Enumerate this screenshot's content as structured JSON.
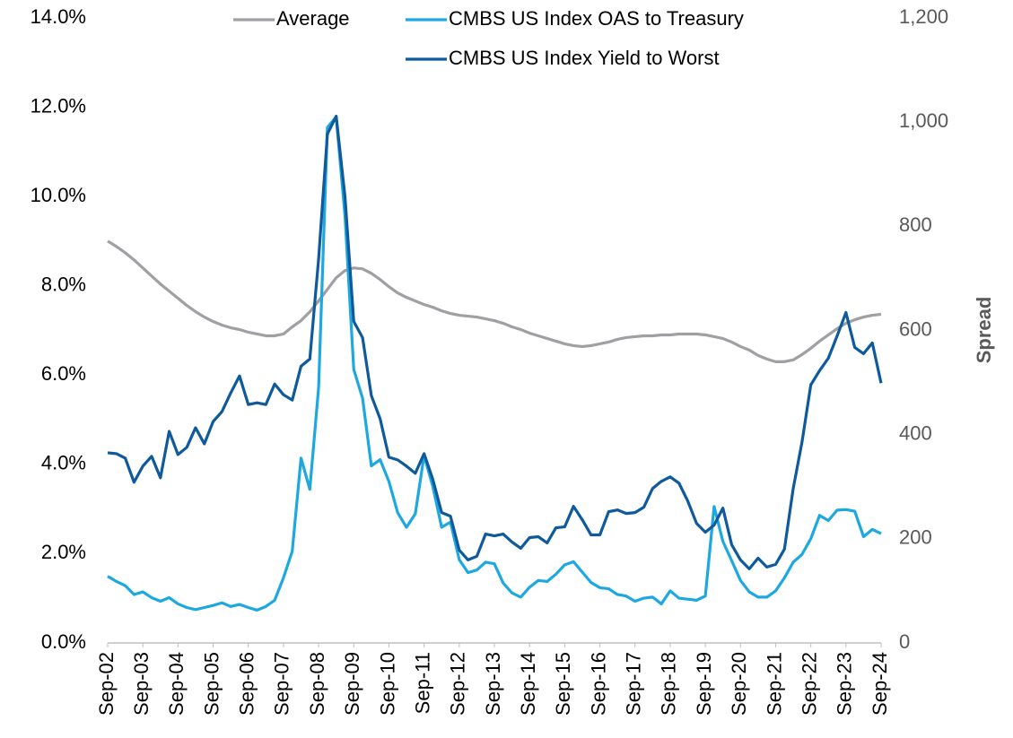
{
  "chart_data": {
    "type": "line",
    "categories": [
      "Sep-02",
      null,
      null,
      null,
      "Sep-03",
      null,
      null,
      null,
      "Sep-04",
      null,
      null,
      null,
      "Sep-05",
      null,
      null,
      null,
      "Sep-06",
      null,
      null,
      null,
      "Sep-07",
      null,
      null,
      null,
      "Sep-08",
      null,
      null,
      null,
      "Sep-09",
      null,
      null,
      null,
      "Sep-10",
      null,
      null,
      null,
      "Sep-11",
      null,
      null,
      null,
      "Sep-12",
      null,
      null,
      null,
      "Sep-13",
      null,
      null,
      null,
      "Sep-14",
      null,
      null,
      null,
      "Sep-15",
      null,
      null,
      null,
      "Sep-16",
      null,
      null,
      null,
      "Sep-17",
      null,
      null,
      null,
      "Sep-18",
      null,
      null,
      null,
      "Sep-19",
      null,
      null,
      null,
      "Sep-20",
      null,
      null,
      null,
      "Sep-21",
      null,
      null,
      null,
      "Sep-22",
      null,
      null,
      null,
      "Sep-23",
      null,
      null,
      null,
      "Sep-24"
    ],
    "series": [
      {
        "name": "Average",
        "color": "#a0a0a4",
        "values": [
          9.0,
          8.88,
          8.74,
          8.58,
          8.4,
          8.22,
          8.04,
          7.88,
          7.72,
          7.56,
          7.42,
          7.3,
          7.2,
          7.12,
          7.06,
          7.02,
          6.96,
          6.92,
          6.88,
          6.88,
          6.92,
          7.08,
          7.22,
          7.42,
          7.66,
          7.92,
          8.18,
          8.34,
          8.4,
          8.38,
          8.28,
          8.14,
          7.98,
          7.84,
          7.74,
          7.66,
          7.58,
          7.52,
          7.44,
          7.38,
          7.34,
          7.32,
          7.3,
          7.26,
          7.22,
          7.16,
          7.08,
          7.02,
          6.94,
          6.88,
          6.82,
          6.76,
          6.7,
          6.66,
          6.64,
          6.66,
          6.7,
          6.74,
          6.8,
          6.84,
          6.86,
          6.88,
          6.88,
          6.9,
          6.9,
          6.92,
          6.92,
          6.92,
          6.9,
          6.86,
          6.82,
          6.74,
          6.64,
          6.56,
          6.44,
          6.36,
          6.3,
          6.3,
          6.34,
          6.46,
          6.6,
          6.76,
          6.9,
          7.04,
          7.16,
          7.24,
          7.3,
          7.34,
          7.36
        ]
      },
      {
        "name": "CMBS US Index OAS to Treasury",
        "color": "#1ea8e0",
        "axis": "y2",
        "values": [
          128,
          118,
          110,
          93,
          98,
          87,
          80,
          87,
          75,
          68,
          64,
          68,
          72,
          77,
          70,
          74,
          68,
          63,
          70,
          82,
          125,
          176,
          355,
          295,
          490,
          990,
          1010,
          820,
          525,
          470,
          340,
          352,
          310,
          250,
          222,
          248,
          360,
          300,
          222,
          232,
          160,
          135,
          140,
          155,
          152,
          115,
          96,
          88,
          107,
          120,
          118,
          132,
          150,
          156,
          136,
          116,
          106,
          104,
          93,
          90,
          80,
          86,
          88,
          75,
          100,
          86,
          84,
          82,
          90,
          262,
          195,
          158,
          120,
          98,
          88,
          88,
          100,
          125,
          155,
          170,
          200,
          245,
          235,
          255,
          256,
          253,
          204,
          218,
          210
        ]
      },
      {
        "name": "CMBS US Index Yield to Worst",
        "color": "#0e5a9c",
        "values": [
          4.26,
          4.24,
          4.14,
          3.6,
          3.96,
          4.18,
          3.7,
          4.74,
          4.22,
          4.38,
          4.82,
          4.46,
          4.96,
          5.18,
          5.6,
          5.98,
          5.34,
          5.38,
          5.34,
          5.8,
          5.56,
          5.44,
          6.2,
          6.36,
          8.6,
          11.4,
          11.8,
          10.0,
          7.2,
          6.84,
          5.54,
          5.02,
          4.16,
          4.1,
          3.96,
          3.8,
          4.24,
          3.66,
          2.92,
          2.84,
          2.08,
          1.86,
          1.94,
          2.44,
          2.4,
          2.44,
          2.26,
          2.12,
          2.36,
          2.38,
          2.24,
          2.58,
          2.6,
          3.06,
          2.76,
          2.42,
          2.42,
          2.94,
          2.98,
          2.9,
          2.92,
          3.04,
          3.46,
          3.62,
          3.72,
          3.58,
          3.18,
          2.68,
          2.48,
          2.64,
          3.02,
          2.2,
          1.86,
          1.66,
          1.9,
          1.7,
          1.76,
          2.1,
          3.46,
          4.5,
          5.78,
          6.1,
          6.38,
          6.88,
          7.4,
          6.62,
          6.48,
          6.72,
          5.82
        ]
      }
    ],
    "ylim": [
      0,
      14
    ],
    "yticks": [
      {
        "value": 0,
        "label": "0.0%"
      },
      {
        "value": 2,
        "label": "2.0%"
      },
      {
        "value": 4,
        "label": "4.0%"
      },
      {
        "value": 6,
        "label": "6.0%"
      },
      {
        "value": 8,
        "label": "8.0%"
      },
      {
        "value": 10,
        "label": "10.0%"
      },
      {
        "value": 12,
        "label": "12.0%"
      },
      {
        "value": 14,
        "label": "14.0%"
      }
    ],
    "y2lim": [
      0,
      1200
    ],
    "y2ticks": [
      0,
      200,
      400,
      600,
      800,
      {
        "value": 1000,
        "label": "1,000"
      },
      {
        "value": 1200,
        "label": "1,200"
      }
    ],
    "y2label": "Spread",
    "grid": false
  }
}
